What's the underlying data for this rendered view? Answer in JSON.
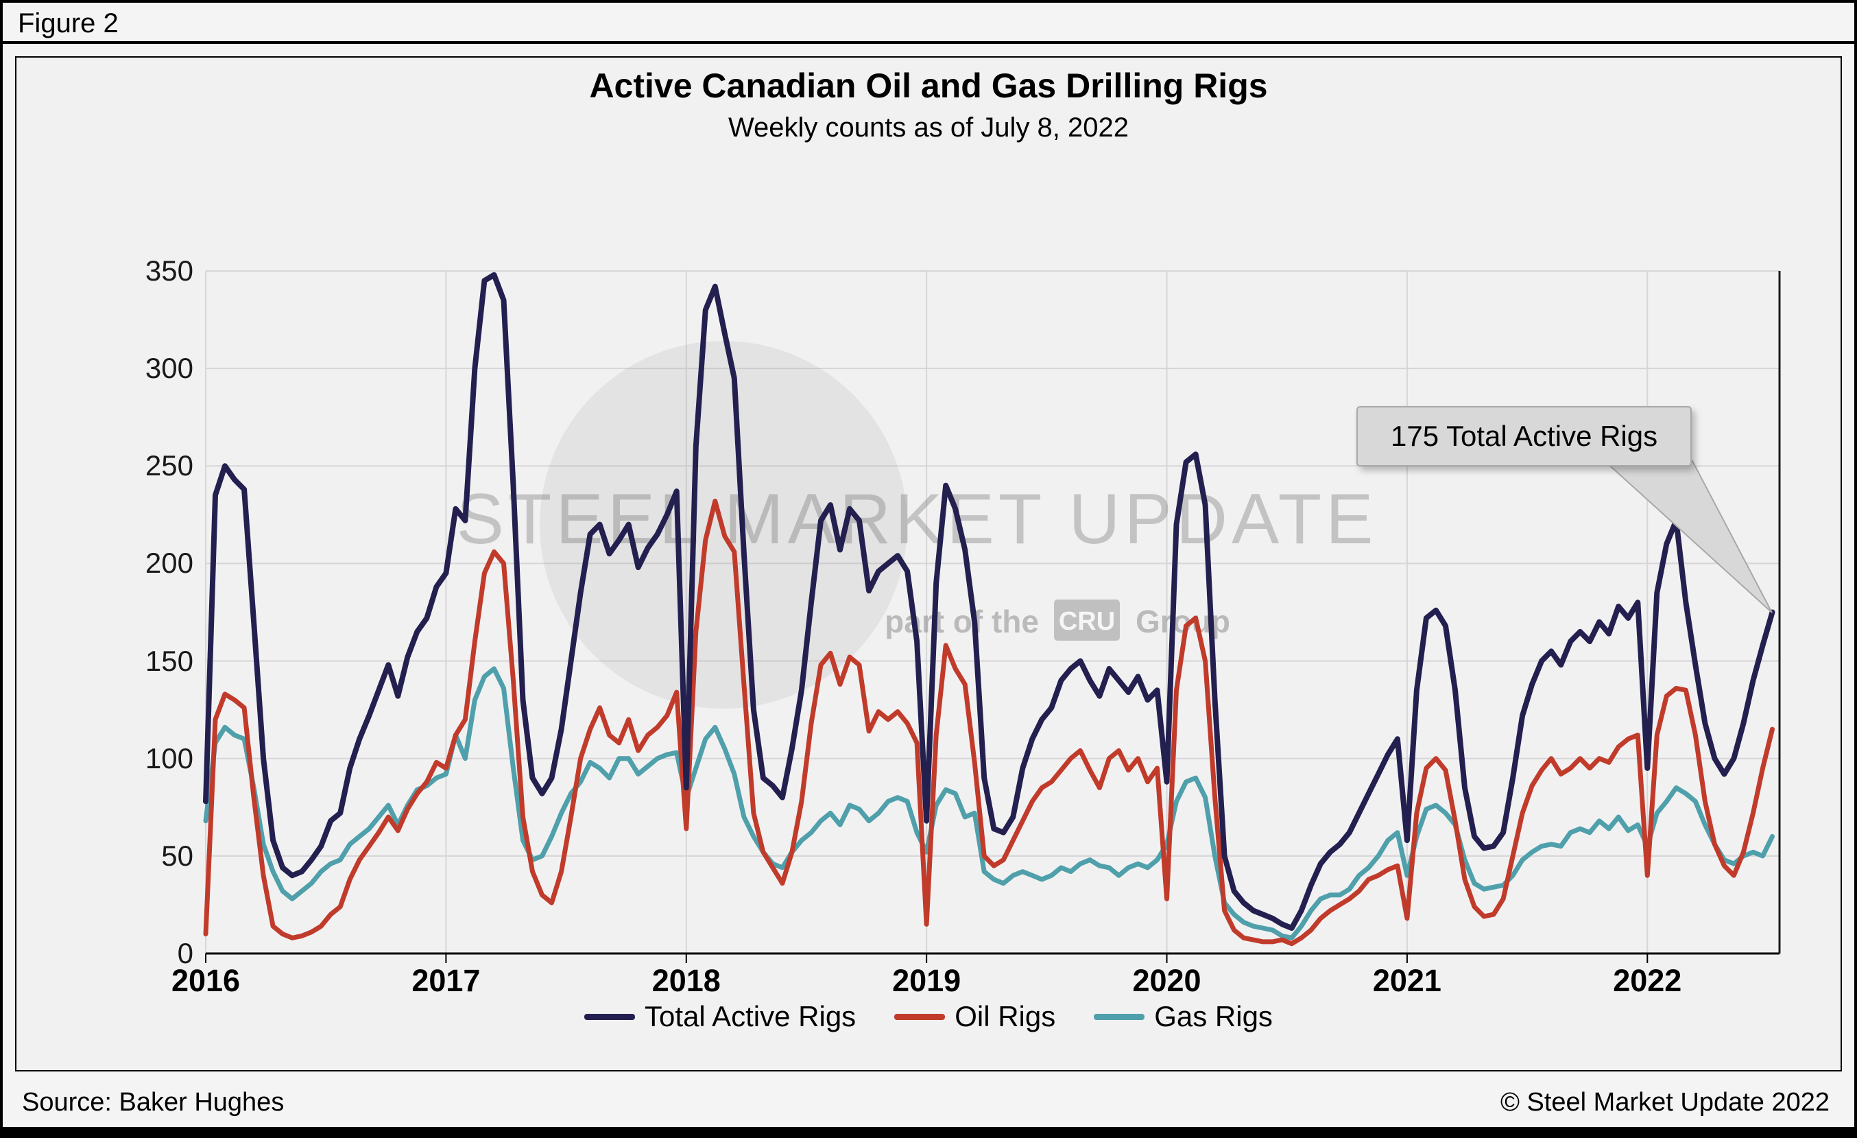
{
  "figure_label": "Figure 2",
  "title": "Active Canadian Oil and Gas Drilling Rigs",
  "subtitle": "Weekly counts as of July 8, 2022",
  "source": "Source: Baker Hughes",
  "copyright": "© Steel Market Update 2022",
  "annotation": {
    "text": "175 Total Active Rigs"
  },
  "watermark": {
    "line1": "STEEL MARKET UPDATE",
    "line2_prefix": "part of the",
    "line2_badge": "CRU",
    "line2_suffix": "Group"
  },
  "colors": {
    "total": "#232050",
    "oil": "#c13b2b",
    "gas": "#4fa0ab",
    "grid": "#d7d5d7",
    "axis": "#000000",
    "annotation_bg": "#d8d8d8",
    "annotation_border": "#a8a8a8"
  },
  "chart_data": {
    "type": "line",
    "title": "Active Canadian Oil and Gas Drilling Rigs",
    "subtitle": "Weekly counts as of July 8, 2022",
    "xlabel": "",
    "ylabel": "",
    "grid": true,
    "legend_position": "bottom",
    "xlim": [
      2016.0,
      2022.55
    ],
    "ylim": [
      0,
      350
    ],
    "yticks": [
      0,
      50,
      100,
      150,
      200,
      250,
      300,
      350
    ],
    "xticks": [
      2016,
      2017,
      2018,
      2019,
      2020,
      2021,
      2022
    ],
    "annotation": {
      "text": "175 Total Active Rigs",
      "x": 2022.52,
      "y": 175
    },
    "x": [
      2016.0,
      2016.04,
      2016.08,
      2016.12,
      2016.16,
      2016.2,
      2016.24,
      2016.28,
      2016.32,
      2016.36,
      2016.4,
      2016.44,
      2016.48,
      2016.52,
      2016.56,
      2016.6,
      2016.64,
      2016.68,
      2016.72,
      2016.76,
      2016.8,
      2016.84,
      2016.88,
      2016.92,
      2016.96,
      2017.0,
      2017.04,
      2017.08,
      2017.12,
      2017.16,
      2017.2,
      2017.24,
      2017.28,
      2017.32,
      2017.36,
      2017.4,
      2017.44,
      2017.48,
      2017.52,
      2017.56,
      2017.6,
      2017.64,
      2017.68,
      2017.72,
      2017.76,
      2017.8,
      2017.84,
      2017.88,
      2017.92,
      2017.96,
      2018.0,
      2018.04,
      2018.08,
      2018.12,
      2018.16,
      2018.2,
      2018.24,
      2018.28,
      2018.32,
      2018.36,
      2018.4,
      2018.44,
      2018.48,
      2018.52,
      2018.56,
      2018.6,
      2018.64,
      2018.68,
      2018.72,
      2018.76,
      2018.8,
      2018.84,
      2018.88,
      2018.92,
      2018.96,
      2019.0,
      2019.04,
      2019.08,
      2019.12,
      2019.16,
      2019.2,
      2019.24,
      2019.28,
      2019.32,
      2019.36,
      2019.4,
      2019.44,
      2019.48,
      2019.52,
      2019.56,
      2019.6,
      2019.64,
      2019.68,
      2019.72,
      2019.76,
      2019.8,
      2019.84,
      2019.88,
      2019.92,
      2019.96,
      2020.0,
      2020.04,
      2020.08,
      2020.12,
      2020.16,
      2020.2,
      2020.24,
      2020.28,
      2020.32,
      2020.36,
      2020.4,
      2020.44,
      2020.48,
      2020.52,
      2020.56,
      2020.6,
      2020.64,
      2020.68,
      2020.72,
      2020.76,
      2020.8,
      2020.84,
      2020.88,
      2020.92,
      2020.96,
      2021.0,
      2021.04,
      2021.08,
      2021.12,
      2021.16,
      2021.2,
      2021.24,
      2021.28,
      2021.32,
      2021.36,
      2021.4,
      2021.44,
      2021.48,
      2021.52,
      2021.56,
      2021.6,
      2021.64,
      2021.68,
      2021.72,
      2021.76,
      2021.8,
      2021.84,
      2021.88,
      2021.92,
      2021.96,
      2022.0,
      2022.04,
      2022.08,
      2022.12,
      2022.16,
      2022.2,
      2022.24,
      2022.28,
      2022.32,
      2022.36,
      2022.4,
      2022.44,
      2022.48,
      2022.52
    ],
    "series": [
      {
        "name": "Total Active Rigs",
        "color": "#232050",
        "values": [
          78,
          235,
          250,
          243,
          238,
          170,
          100,
          58,
          44,
          40,
          42,
          48,
          55,
          68,
          72,
          95,
          110,
          122,
          135,
          148,
          132,
          152,
          165,
          172,
          188,
          195,
          228,
          222,
          300,
          345,
          348,
          335,
          240,
          130,
          90,
          82,
          90,
          115,
          150,
          185,
          215,
          220,
          205,
          212,
          220,
          198,
          208,
          215,
          225,
          237,
          85,
          260,
          330,
          342,
          318,
          295,
          205,
          125,
          90,
          86,
          80,
          105,
          135,
          180,
          222,
          230,
          207,
          228,
          222,
          186,
          196,
          200,
          204,
          196,
          160,
          68,
          190,
          240,
          228,
          207,
          170,
          90,
          64,
          62,
          70,
          95,
          110,
          120,
          126,
          140,
          146,
          150,
          140,
          132,
          146,
          140,
          134,
          142,
          130,
          135,
          88,
          220,
          252,
          256,
          230,
          130,
          50,
          32,
          26,
          22,
          20,
          18,
          15,
          13,
          22,
          35,
          46,
          52,
          56,
          62,
          72,
          82,
          92,
          102,
          110,
          58,
          135,
          172,
          176,
          168,
          135,
          85,
          60,
          54,
          55,
          62,
          90,
          122,
          138,
          150,
          155,
          148,
          160,
          165,
          160,
          170,
          164,
          178,
          172,
          180,
          95,
          185,
          210,
          222,
          180,
          148,
          118,
          100,
          92,
          100,
          118,
          140,
          158,
          175
        ]
      },
      {
        "name": "Oil Rigs",
        "color": "#c13b2b",
        "values": [
          10,
          120,
          133,
          130,
          126,
          80,
          40,
          14,
          10,
          8,
          9,
          11,
          14,
          20,
          24,
          38,
          48,
          55,
          62,
          70,
          63,
          74,
          82,
          88,
          98,
          95,
          112,
          120,
          160,
          195,
          206,
          200,
          140,
          70,
          42,
          30,
          26,
          42,
          70,
          100,
          115,
          126,
          112,
          108,
          120,
          104,
          112,
          116,
          122,
          134,
          64,
          165,
          212,
          232,
          214,
          206,
          138,
          72,
          52,
          44,
          36,
          52,
          78,
          118,
          148,
          154,
          138,
          152,
          148,
          114,
          124,
          120,
          124,
          118,
          108,
          15,
          112,
          158,
          146,
          138,
          98,
          50,
          45,
          48,
          58,
          68,
          78,
          85,
          88,
          94,
          100,
          104,
          94,
          85,
          100,
          104,
          94,
          100,
          88,
          95,
          28,
          135,
          168,
          172,
          150,
          80,
          22,
          12,
          8,
          7,
          6,
          6,
          7,
          5,
          8,
          12,
          18,
          22,
          25,
          28,
          32,
          38,
          40,
          43,
          45,
          18,
          72,
          95,
          100,
          94,
          68,
          38,
          24,
          19,
          20,
          28,
          50,
          72,
          86,
          94,
          100,
          92,
          95,
          100,
          95,
          100,
          98,
          106,
          110,
          112,
          40,
          112,
          132,
          136,
          135,
          112,
          78,
          56,
          45,
          40,
          52,
          72,
          95,
          115
        ]
      },
      {
        "name": "Gas Rigs",
        "color": "#4fa0ab",
        "values": [
          68,
          108,
          116,
          112,
          110,
          85,
          56,
          42,
          32,
          28,
          32,
          36,
          42,
          46,
          48,
          56,
          60,
          64,
          70,
          76,
          66,
          76,
          84,
          86,
          90,
          92,
          112,
          100,
          130,
          142,
          146,
          136,
          95,
          58,
          48,
          50,
          60,
          72,
          82,
          88,
          98,
          95,
          90,
          100,
          100,
          92,
          96,
          100,
          102,
          103,
          80,
          95,
          110,
          116,
          105,
          92,
          70,
          60,
          52,
          46,
          44,
          52,
          58,
          62,
          68,
          72,
          66,
          76,
          74,
          68,
          72,
          78,
          80,
          78,
          62,
          52,
          76,
          84,
          82,
          70,
          72,
          42,
          38,
          36,
          40,
          42,
          40,
          38,
          40,
          44,
          42,
          46,
          48,
          45,
          44,
          40,
          44,
          46,
          44,
          48,
          56,
          78,
          88,
          90,
          80,
          50,
          26,
          20,
          16,
          14,
          13,
          12,
          9,
          8,
          14,
          22,
          28,
          30,
          30,
          33,
          40,
          44,
          50,
          58,
          62,
          40,
          60,
          74,
          76,
          72,
          66,
          48,
          36,
          33,
          34,
          35,
          40,
          48,
          52,
          55,
          56,
          55,
          62,
          64,
          62,
          68,
          64,
          70,
          63,
          66,
          55,
          72,
          78,
          85,
          82,
          78,
          66,
          56,
          48,
          46,
          50,
          52,
          50,
          60
        ]
      }
    ]
  }
}
